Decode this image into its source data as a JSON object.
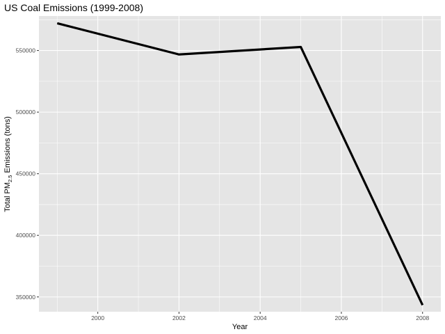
{
  "chart_data": {
    "type": "line",
    "title": "US Coal Emissions (1999-2008)",
    "xlabel": "Year",
    "ylabel": {
      "prefix": "Total PM",
      "subscript": "2.5",
      "suffix": " Emissions (tons)"
    },
    "x": [
      1999,
      2002,
      2005,
      2008
    ],
    "series": [
      {
        "values": [
          572126,
          546789,
          552881,
          343432
        ]
      }
    ],
    "xlim": [
      1998.55,
      2008.45
    ],
    "ylim": [
      338000,
      578000
    ],
    "xticks": [
      2000,
      2002,
      2004,
      2006,
      2008
    ],
    "xtick_labels": [
      "2000",
      "2002",
      "2004",
      "2006",
      "2008"
    ],
    "yticks": [
      350000,
      400000,
      450000,
      500000,
      550000
    ],
    "ytick_labels": [
      "350000",
      "400000",
      "450000",
      "500000",
      "550000"
    ],
    "grid": true,
    "colors": {
      "panel_background": "#e5e5e5",
      "grid_major": "#ffffff",
      "line": "#000000",
      "tick_label": "#4d4d4d",
      "tick_mark": "#333333"
    }
  }
}
